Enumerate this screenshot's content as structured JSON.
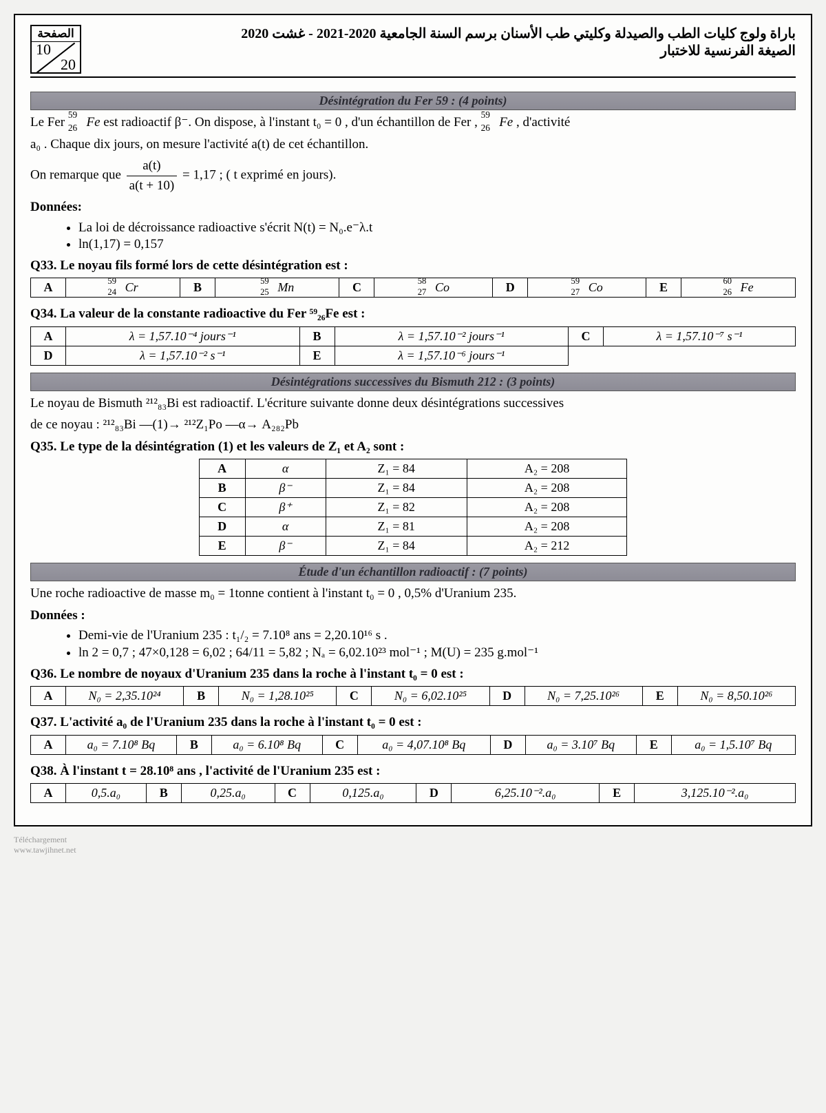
{
  "header": {
    "title_ar_line1": "باراة ولوج كليات الطب والصيدلة وكليتي طب الأسنان برسم السنة الجامعية 2020-2021 - غشت 2020",
    "title_ar_line2": "الصيغة الفرنسية للاختبار",
    "page_label": "الصفحة",
    "page_current": "10",
    "page_total": "20"
  },
  "sections": {
    "s1": "Désintégration du Fer 59 : (4 points)",
    "s2": "Désintégrations successives du Bismuth 212 : (3 points)",
    "s3": "Étude d'un échantillon radioactif : (7 points)"
  },
  "s1_text": {
    "p1a": "Le Fer ",
    "nuc1": {
      "A": "59",
      "Z": "26",
      "el": "Fe"
    },
    "p1b": " est radioactif β⁻. On dispose, à l'instant t₀ = 0 , d'un échantillon de Fer , ",
    "p1c": ", d'activité",
    "p2": "a₀ . Chaque dix jours, on mesure l'activité a(t) de cet échantillon.",
    "p3a": "On remarque que ",
    "frac_n": "a(t)",
    "frac_d": "a(t + 10)",
    "p3b": " = 1,17 ; ( t exprimé en jours).",
    "donnees": "Données:",
    "li1": "La loi de décroissance radioactive s'écrit N(t) = N₀.e⁻λ.t",
    "li2": "ln(1,17) = 0,157"
  },
  "q33": {
    "title": "Q33. Le noyau fils formé lors de cette désintégration est :",
    "opts": [
      {
        "l": "A",
        "A": "59",
        "Z": "24",
        "el": "Cr"
      },
      {
        "l": "B",
        "A": "59",
        "Z": "25",
        "el": "Mn"
      },
      {
        "l": "C",
        "A": "58",
        "Z": "27",
        "el": "Co"
      },
      {
        "l": "D",
        "A": "59",
        "Z": "27",
        "el": "Co"
      },
      {
        "l": "E",
        "A": "60",
        "Z": "26",
        "el": "Fe"
      }
    ]
  },
  "q34": {
    "title": "Q34. La valeur de la constante radioactive du Fer ⁵⁹₂₆Fe est :",
    "opts": [
      {
        "l": "A",
        "v": "λ = 1,57.10⁻⁴ jours⁻¹"
      },
      {
        "l": "B",
        "v": "λ = 1,57.10⁻² jours⁻¹"
      },
      {
        "l": "C",
        "v": "λ = 1,57.10⁻⁷ s⁻¹"
      },
      {
        "l": "D",
        "v": "λ = 1,57.10⁻² s⁻¹"
      },
      {
        "l": "E",
        "v": "λ = 1,57.10⁻⁶ jours⁻¹"
      }
    ]
  },
  "s2_text": {
    "p1": "Le noyau de Bismuth ²¹²₈₃Bi est radioactif. L'écriture suivante donne deux désintégrations successives",
    "p2": "de ce noyau : ²¹²₈₃Bi —(1)→ ²¹²Z₁Po —α→ A₂₈₂Pb"
  },
  "q35": {
    "title": "Q35. Le type de la désintégration (1) et les valeurs de Z₁ et A₂ sont :",
    "rows": [
      {
        "l": "A",
        "t": "α",
        "z": "Z₁ = 84",
        "a": "A₂ = 208"
      },
      {
        "l": "B",
        "t": "β⁻",
        "z": "Z₁ = 84",
        "a": "A₂ = 208"
      },
      {
        "l": "C",
        "t": "β⁺",
        "z": "Z₁ = 82",
        "a": "A₂ = 208"
      },
      {
        "l": "D",
        "t": "α",
        "z": "Z₁ = 81",
        "a": "A₂ = 208"
      },
      {
        "l": "E",
        "t": "β⁻",
        "z": "Z₁ = 84",
        "a": "A₂ = 212"
      }
    ]
  },
  "s3_text": {
    "p1": "Une roche radioactive de masse m₀ = 1tonne contient à l'instant t₀ = 0 , 0,5% d'Uranium 235.",
    "donnees": "Données :",
    "li1": "Demi-vie de l'Uranium 235 : t₁/₂ = 7.10⁸ ans = 2,20.10¹⁶ s .",
    "li2": "ln 2 = 0,7   ;   47×0,128 = 6,02   ;   64/11 = 5,82   ;   Nₐ = 6,02.10²³ mol⁻¹   ;   M(U) = 235 g.mol⁻¹"
  },
  "q36": {
    "title": "Q36. Le nombre de noyaux d'Uranium 235 dans la roche à l'instant t₀ = 0 est :",
    "opts": [
      {
        "l": "A",
        "v": "N₀ = 2,35.10²⁴"
      },
      {
        "l": "B",
        "v": "N₀ = 1,28.10²⁵"
      },
      {
        "l": "C",
        "v": "N₀ = 6,02.10²⁵"
      },
      {
        "l": "D",
        "v": "N₀ = 7,25.10²⁶"
      },
      {
        "l": "E",
        "v": "N₀ = 8,50.10²⁶"
      }
    ]
  },
  "q37": {
    "title": "Q37. L'activité a₀ de l'Uranium 235 dans la roche à l'instant t₀ = 0 est :",
    "opts": [
      {
        "l": "A",
        "v": "a₀ = 7.10⁸ Bq"
      },
      {
        "l": "B",
        "v": "a₀ = 6.10⁸ Bq"
      },
      {
        "l": "C",
        "v": "a₀ = 4,07.10⁸ Bq"
      },
      {
        "l": "D",
        "v": "a₀ = 3.10⁷ Bq"
      },
      {
        "l": "E",
        "v": "a₀ = 1,5.10⁷ Bq"
      }
    ]
  },
  "q38": {
    "title": "Q38. À l'instant t = 28.10⁸ ans , l'activité de l'Uranium 235 est :",
    "opts": [
      {
        "l": "A",
        "v": "0,5.a₀"
      },
      {
        "l": "B",
        "v": "0,25.a₀"
      },
      {
        "l": "C",
        "v": "0,125.a₀"
      },
      {
        "l": "D",
        "v": "6,25.10⁻².a₀"
      },
      {
        "l": "E",
        "v": "3,125.10⁻².a₀"
      }
    ]
  },
  "watermark": {
    "l1": "Téléchargement",
    "l2": "www.tawjihnet.net"
  }
}
